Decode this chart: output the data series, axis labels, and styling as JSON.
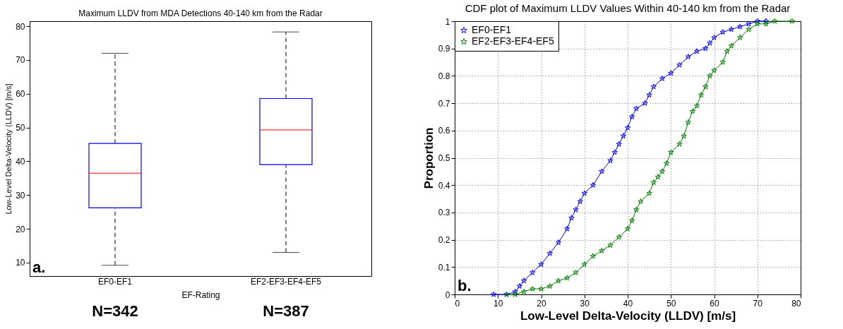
{
  "chart_data": [
    {
      "type": "box",
      "title": "Maximum LLDV from MDA Detections 40-140 km from the Radar",
      "xlabel": "EF-Rating",
      "ylabel": "Low-Level Delta-Velocity (LLDV) [m/s]",
      "categories": [
        "EF0-EF1",
        "EF2-EF3-EF4-EF5"
      ],
      "series": [
        {
          "color": "#0000ff",
          "boxes": [
            {
              "low": 9.2,
              "q1": 26.2,
              "median": 36.5,
              "q3": 45.3,
              "high": 72
            },
            {
              "low": 13,
              "q1": 39,
              "median": 49.3,
              "q3": 58.6,
              "high": 78.3
            }
          ]
        }
      ],
      "ylim": [
        6,
        81.5
      ],
      "yticks": [
        10,
        20,
        30,
        40,
        50,
        60,
        70,
        80
      ],
      "grid": false,
      "annotations": [
        "N=342",
        "N=387",
        "a."
      ]
    },
    {
      "type": "line",
      "title": "CDF plot of Maximum LLDV Values Within 40-140 km from the Radar",
      "xlabel": "Low-Level Delta-Velocity (LLDV) [m/s]",
      "ylabel": "Proportion",
      "marker": "star",
      "legend": "top left",
      "grid": true,
      "xlim": [
        0,
        80
      ],
      "xticks": [
        0,
        10,
        20,
        30,
        40,
        50,
        60,
        70,
        80
      ],
      "ylim": [
        0,
        1
      ],
      "yticks": [
        0,
        0.1,
        0.2,
        0.3,
        0.4,
        0.5,
        0.6,
        0.7,
        0.8,
        0.9,
        1
      ],
      "series": [
        {
          "name": "EF0-EF1",
          "color": "#0000ff",
          "x": [
            9,
            12,
            14,
            15,
            16,
            18,
            20,
            22,
            24,
            26,
            27,
            28,
            29,
            30,
            32,
            34,
            36,
            37,
            38,
            39,
            40,
            41,
            42,
            44,
            45,
            46,
            48,
            50,
            52,
            54,
            56,
            58,
            59,
            60,
            62,
            64,
            66,
            68,
            70,
            72
          ],
          "values": [
            0,
            0,
            0.01,
            0.03,
            0.05,
            0.08,
            0.11,
            0.15,
            0.19,
            0.24,
            0.28,
            0.31,
            0.34,
            0.37,
            0.4,
            0.45,
            0.49,
            0.52,
            0.55,
            0.58,
            0.61,
            0.65,
            0.68,
            0.7,
            0.73,
            0.76,
            0.79,
            0.81,
            0.84,
            0.87,
            0.89,
            0.9,
            0.92,
            0.94,
            0.96,
            0.97,
            0.98,
            0.99,
            1,
            1
          ]
        },
        {
          "name": "EF2-EF3-EF4-EF5",
          "color": "#008000",
          "x": [
            12,
            14,
            16,
            18,
            20,
            22,
            24,
            26,
            28,
            30,
            32,
            34,
            36,
            38,
            40,
            41,
            42,
            43,
            45,
            46,
            47,
            48,
            49,
            50,
            52,
            53,
            54,
            55,
            56,
            57,
            58,
            59,
            60,
            62,
            63,
            64,
            66,
            68,
            70,
            72,
            74,
            78
          ],
          "values": [
            0,
            0,
            0.01,
            0.02,
            0.02,
            0.03,
            0.05,
            0.06,
            0.08,
            0.11,
            0.14,
            0.16,
            0.18,
            0.21,
            0.24,
            0.27,
            0.31,
            0.34,
            0.37,
            0.41,
            0.43,
            0.45,
            0.48,
            0.52,
            0.55,
            0.58,
            0.63,
            0.67,
            0.69,
            0.73,
            0.76,
            0.8,
            0.82,
            0.85,
            0.89,
            0.91,
            0.94,
            0.97,
            0.99,
            0.99,
            1,
            1
          ]
        }
      ],
      "annotations": [
        "b."
      ]
    }
  ]
}
